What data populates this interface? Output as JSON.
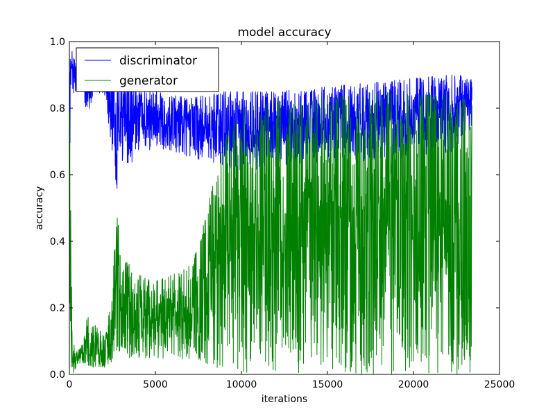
{
  "chart_data": {
    "type": "line",
    "title": "model accuracy",
    "xlabel": "iterations",
    "ylabel": "accuracy",
    "xlim": [
      0,
      25000
    ],
    "ylim": [
      0.0,
      1.0
    ],
    "x_ticks": [
      "0",
      "5000",
      "10000",
      "15000",
      "20000",
      "25000"
    ],
    "y_ticks": [
      "0.0",
      "0.2",
      "0.4",
      "0.6",
      "0.8",
      "1.0"
    ],
    "grid": false,
    "legend_position": "top-left",
    "series": [
      {
        "name": "discriminator",
        "color": "#0000ff",
        "x_max": 23400,
        "envelope": {
          "x": [
            0,
            100,
            250,
            400,
            600,
            800,
            1000,
            1500,
            2000,
            2400,
            2600,
            2800,
            3000,
            3500,
            4000,
            5000,
            6000,
            7000,
            8000,
            9000,
            10000,
            12000,
            14000,
            16000,
            18000,
            20000,
            22000,
            23400
          ],
          "low": [
            0.45,
            0.9,
            0.8,
            0.86,
            0.85,
            0.84,
            0.77,
            0.85,
            0.84,
            0.7,
            0.62,
            0.5,
            0.64,
            0.62,
            0.66,
            0.68,
            0.66,
            0.65,
            0.64,
            0.62,
            0.61,
            0.62,
            0.63,
            0.64,
            0.64,
            0.65,
            0.66,
            0.72
          ],
          "high": [
            1.0,
            1.0,
            0.96,
            0.92,
            0.94,
            0.94,
            0.93,
            0.92,
            0.93,
            0.94,
            0.92,
            0.9,
            0.9,
            0.88,
            0.86,
            0.85,
            0.84,
            0.83,
            0.84,
            0.85,
            0.85,
            0.85,
            0.86,
            0.87,
            0.88,
            0.89,
            0.9,
            0.9
          ]
        }
      },
      {
        "name": "generator",
        "color": "#008000",
        "x_max": 23400,
        "envelope": {
          "x": [
            0,
            100,
            200,
            400,
            800,
            1000,
            1200,
            1600,
            2000,
            2400,
            2600,
            2800,
            3000,
            3500,
            4000,
            5000,
            6000,
            7000,
            7500,
            8000,
            8500,
            9000,
            10000,
            12000,
            14000,
            16000,
            18000,
            20000,
            22000,
            23400
          ],
          "low": [
            0.2,
            0.0,
            0.0,
            0.02,
            0.03,
            0.02,
            0.02,
            0.02,
            0.02,
            0.03,
            0.06,
            0.0,
            0.03,
            0.04,
            0.04,
            0.05,
            0.04,
            0.04,
            0.03,
            0.02,
            0.02,
            0.01,
            0.0,
            0.0,
            0.0,
            0.0,
            0.0,
            0.0,
            0.0,
            0.0
          ],
          "high": [
            1.0,
            0.35,
            0.1,
            0.08,
            0.09,
            0.2,
            0.14,
            0.15,
            0.12,
            0.2,
            0.38,
            0.48,
            0.35,
            0.33,
            0.3,
            0.28,
            0.3,
            0.33,
            0.38,
            0.5,
            0.6,
            0.72,
            0.8,
            0.82,
            0.82,
            0.84,
            0.85,
            0.84,
            0.84,
            0.82
          ]
        }
      }
    ]
  }
}
